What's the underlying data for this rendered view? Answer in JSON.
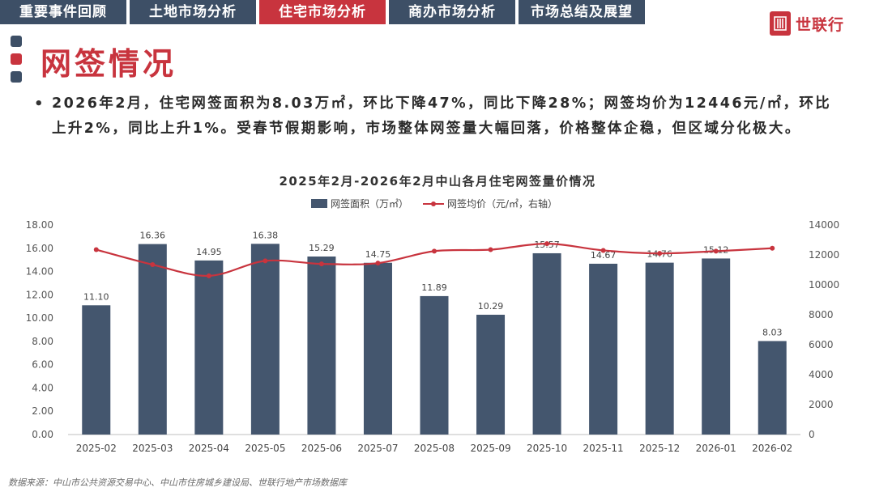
{
  "nav": {
    "tabs": [
      "重要事件回顾",
      "土地市场分析",
      "住宅市场分析",
      "商办市场分析",
      "市场总结及展望"
    ],
    "active_index": 2
  },
  "brand": {
    "logo_text": "世联行",
    "color": "#c8343e",
    "nav_color": "#3d4f66"
  },
  "page": {
    "title": "网签情况",
    "summary": "2026年2月，住宅网签面积为8.03万㎡，环比下降47%，同比下降28%；网签均价为12446元/㎡，环比上升2%，同比上升1%。受春节假期影响，市场整体网签量大幅回落，价格整体企稳，但区域分化极大。"
  },
  "chart_data": {
    "type": "bar",
    "title": "2025年2月-2026年2月中山各月住宅网签量价情况",
    "categories": [
      "2025-02",
      "2025-03",
      "2025-04",
      "2025-05",
      "2025-06",
      "2025-07",
      "2025-08",
      "2025-09",
      "2025-10",
      "2025-11",
      "2025-12",
      "2026-01",
      "2026-02"
    ],
    "series": [
      {
        "name": "网签面积（万㎡）",
        "type": "bar",
        "axis": "left",
        "color": "#44566e",
        "values": [
          11.1,
          16.36,
          14.95,
          16.38,
          15.29,
          14.75,
          11.89,
          10.29,
          15.57,
          14.67,
          14.76,
          15.12,
          8.03
        ],
        "labels": [
          "11.10",
          "16.36",
          "14.95",
          "16.38",
          "15.29",
          "14.75",
          "11.89",
          "10.29",
          "15.57",
          "14.67",
          "14.76",
          "15.12",
          "8.03"
        ]
      },
      {
        "name": "网签均价（元/㎡，右轴）",
        "type": "line",
        "axis": "right",
        "color": "#c8343e",
        "values": [
          12350,
          11350,
          10600,
          11600,
          11400,
          11450,
          12250,
          12350,
          12750,
          12300,
          12100,
          12250,
          12446
        ]
      }
    ],
    "y_left": {
      "range": [
        0,
        18
      ],
      "ticks": [
        "0.00",
        "2.00",
        "4.00",
        "6.00",
        "8.00",
        "10.00",
        "12.00",
        "14.00",
        "16.00",
        "18.00"
      ]
    },
    "y_right": {
      "range": [
        0,
        14000
      ],
      "ticks": [
        "0",
        "2000",
        "4000",
        "6000",
        "8000",
        "10000",
        "12000",
        "14000"
      ]
    },
    "legend_position": "top-center",
    "grid": false
  },
  "footer": {
    "source": "数据来源：中山市公共资源交易中心、中山市住房城乡建设局、世联行地产市场数据库"
  }
}
